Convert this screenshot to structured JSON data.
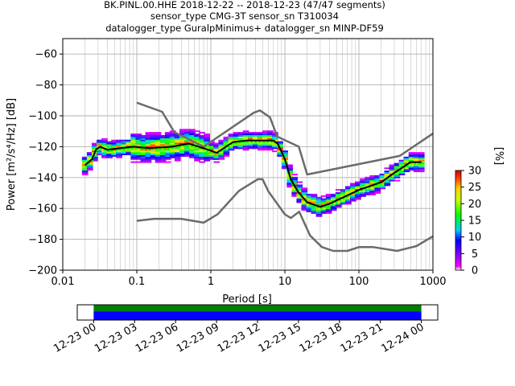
{
  "chart_data": {
    "type": "heatmap",
    "title_lines": [
      "BK.PINL.00.HHE   2018-12-22 -- 2018-12-23  (47/47 segments)",
      "sensor_type CMG-3T sensor_sn T310034",
      "datalogger_type GuralpMinimus+ datalogger_sn MINP-DF59"
    ],
    "xlabel": "Period [s]",
    "ylabel": "Power [m²/s⁴/Hz] [dB]",
    "xscale": "log",
    "xlim": [
      0.01,
      1000
    ],
    "ylim": [
      -200,
      -50
    ],
    "x_tick_labels": [
      "0.01",
      "0.1",
      "1",
      "10",
      "100",
      "1000"
    ],
    "y_tick_labels": [
      "−60",
      "−80",
      "−100",
      "−120",
      "−140",
      "−160",
      "−180",
      "−200"
    ],
    "y_tick_values": [
      -60,
      -80,
      -100,
      -120,
      -140,
      -160,
      -180,
      -200
    ],
    "grid": true,
    "colorbar": {
      "label": "[%]",
      "range": [
        0,
        30
      ],
      "tick_labels": [
        "0",
        "5",
        "10",
        "15",
        "20",
        "25",
        "30"
      ]
    },
    "noise_model_high": {
      "period": [
        0.1,
        0.22,
        0.32,
        0.8,
        3.8,
        4.6,
        6.3,
        7.9,
        15.4,
        20,
        354.8,
        1000
      ],
      "db": [
        -91.5,
        -97.4,
        -110.5,
        -120,
        -98,
        -96.5,
        -101,
        -113.5,
        -120,
        -138,
        -126,
        -111.5
      ]
    },
    "noise_model_low": {
      "period": [
        0.1,
        0.17,
        0.4,
        0.8,
        1.24,
        2.4,
        4.3,
        5,
        6,
        10,
        12,
        15.6,
        21.9,
        31.6,
        45,
        70,
        101,
        154,
        328,
        600,
        1000
      ],
      "db": [
        -168,
        -166.7,
        -166.7,
        -169.2,
        -163.7,
        -148.6,
        -141.1,
        -141.1,
        -149,
        -163.8,
        -166.2,
        -162.1,
        -177.5,
        -185,
        -187.5,
        -187.5,
        -185,
        -185,
        -187.5,
        -184.4,
        -178
      ]
    },
    "median": {
      "period": [
        0.02,
        0.025,
        0.028,
        0.032,
        0.04,
        0.06,
        0.09,
        0.15,
        0.3,
        0.5,
        0.8,
        1.2,
        2,
        3,
        5,
        7,
        8,
        10,
        12,
        15,
        20,
        30,
        40,
        60,
        100,
        200,
        300,
        500,
        700
      ],
      "db": [
        -132,
        -128,
        -122,
        -120,
        -122,
        -121,
        -120,
        -121,
        -120,
        -118,
        -121,
        -124,
        -117,
        -116,
        -116,
        -116,
        -118,
        -128,
        -141,
        -149,
        -156,
        -159,
        -157,
        -153,
        -148,
        -143,
        -137,
        -130,
        -130
      ]
    },
    "mode": {
      "period": [
        0.02,
        0.025,
        0.028,
        0.032,
        0.04,
        0.06,
        0.09,
        0.15,
        0.3,
        0.5,
        0.8,
        1.2,
        2,
        3,
        5,
        7,
        8,
        10,
        12,
        15,
        20,
        30,
        40,
        60,
        100,
        200,
        300,
        500,
        700
      ],
      "db": [
        -133,
        -129,
        -123,
        -121,
        -123,
        -122,
        -121,
        -122,
        -121,
        -119,
        -122,
        -125,
        -118,
        -117,
        -117,
        -117,
        -119,
        -129,
        -142,
        -150,
        -157,
        -160,
        -158,
        -154,
        -149,
        -144,
        -138,
        -131,
        -131
      ]
    },
    "time_axis": {
      "tick_labels": [
        "12-23 00",
        "12-23 03",
        "12-23 06",
        "12-23 09",
        "12-23 12",
        "12-23 15",
        "12-23 18",
        "12-23 21",
        "12-24 00"
      ],
      "tick_hours": [
        0,
        3,
        6,
        9,
        12,
        15,
        18,
        21,
        24
      ],
      "range_hours": [
        -1.2,
        25.2
      ],
      "coverage_hours": [
        0,
        24
      ],
      "data_color": "#0000ff",
      "processed_color": "#008000"
    },
    "colors": {
      "noise_model": "#6b6b6b",
      "median": "#000000",
      "mode": "#00ff00"
    }
  }
}
